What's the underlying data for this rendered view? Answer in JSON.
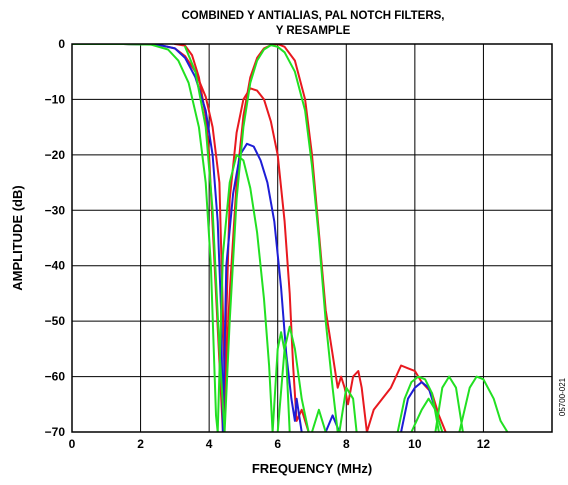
{
  "chart_data": {
    "type": "line",
    "title_line1": "COMBINED Y ANTIALIAS, PAL NOTCH FILTERS,",
    "title_line2": "Y RESAMPLE",
    "xlabel": "FREQUENCY (MHz)",
    "ylabel": "AMPLITUDE (dB)",
    "xlim": [
      0,
      14
    ],
    "ylim": [
      -70,
      0
    ],
    "xticks": [
      0,
      2,
      4,
      6,
      8,
      10,
      12
    ],
    "yticks": [
      0,
      -10,
      -20,
      -30,
      -40,
      -50,
      -60,
      -70
    ],
    "xtick_labels": [
      "0",
      "2",
      "4",
      "6",
      "8",
      "10",
      "12"
    ],
    "ytick_labels": [
      "0",
      "−10",
      "−20",
      "−30",
      "−40",
      "−50",
      "−60",
      "−70"
    ],
    "grid": true,
    "figure_id": "05700-021",
    "colors": {
      "red": "#e8191f",
      "blue": "#1e1ed6",
      "green": "#22e022"
    },
    "series": [
      {
        "color": "red",
        "x": [
          0,
          1.5,
          2.5,
          3.0,
          3.3,
          3.6,
          3.9,
          4.1,
          4.3,
          4.45,
          4.6,
          4.8,
          5.0,
          5.2,
          5.4,
          5.6,
          5.8,
          6.0,
          6.2,
          6.35,
          6.45,
          6.55,
          6.7,
          6.9
        ],
        "y": [
          0,
          0,
          -0.1,
          -0.8,
          -2.2,
          -5,
          -9.5,
          -15,
          -25,
          -60,
          -28,
          -16,
          -10,
          -8,
          -8.4,
          -10,
          -14,
          -20,
          -32,
          -45,
          -58,
          -68,
          -66,
          -70
        ]
      },
      {
        "color": "red",
        "x": [
          3.0,
          3.3,
          3.5,
          3.7,
          3.9,
          4.0,
          4.2,
          4.4,
          4.6,
          4.8,
          5.0,
          5.2,
          5.4,
          5.6,
          5.8,
          6.0,
          6.2,
          6.5,
          6.8,
          7.0,
          7.2,
          7.4,
          7.6,
          7.75,
          7.85,
          7.95,
          8.05,
          8.2,
          8.35,
          8.45,
          8.6,
          8.8,
          9.3,
          9.6,
          9.8,
          10.0,
          10.2,
          10.5,
          10.7,
          10.9
        ],
        "y": [
          0,
          -0.3,
          -2,
          -6,
          -13,
          -20,
          -45,
          -70,
          -45,
          -25,
          -13,
          -6,
          -2.5,
          -0.8,
          -0.2,
          0,
          -0.5,
          -3,
          -10,
          -20,
          -34,
          -48,
          -56,
          -62,
          -60,
          -62,
          -65,
          -60,
          -59,
          -62,
          -70,
          -66,
          -62,
          -58,
          -58.5,
          -59,
          -61,
          -63,
          -67,
          -70
        ]
      },
      {
        "color": "blue",
        "x": [
          0,
          1.5,
          2.5,
          3.0,
          3.3,
          3.6,
          3.9,
          4.1,
          4.25,
          4.35,
          4.4,
          4.5,
          4.7,
          4.9,
          5.1,
          5.3,
          5.5,
          5.7,
          5.9,
          6.1,
          6.25,
          6.4,
          6.5,
          6.55,
          6.7
        ],
        "y": [
          0,
          0,
          -0.1,
          -0.8,
          -2.5,
          -6,
          -12,
          -20,
          -32,
          -48,
          -70,
          -40,
          -27,
          -20,
          -18,
          -18.5,
          -21,
          -25,
          -32,
          -44,
          -56,
          -64,
          -68,
          -64,
          -70
        ]
      },
      {
        "color": "blue",
        "x": [
          7.4,
          7.6,
          7.8
        ],
        "y": [
          -70,
          -67,
          -70
        ]
      },
      {
        "color": "blue",
        "x": [
          9.6,
          9.8,
          10.0,
          10.2,
          10.4,
          10.6
        ],
        "y": [
          -70,
          -64,
          -62,
          -61,
          -62,
          -66
        ]
      },
      {
        "color": "green",
        "x": [
          0,
          1.5,
          2.3,
          2.8,
          3.1,
          3.4,
          3.7,
          3.9,
          4.05,
          4.15,
          4.2,
          4.25
        ],
        "y": [
          0,
          0,
          -0.1,
          -1,
          -3,
          -7,
          -15,
          -25,
          -40,
          -58,
          -67,
          -70
        ]
      },
      {
        "color": "green",
        "x": [
          4.25,
          4.4,
          4.6,
          4.8,
          5.0,
          5.2,
          5.4,
          5.6,
          5.75,
          5.85
        ],
        "y": [
          -70,
          -38,
          -25,
          -20,
          -21,
          -26,
          -34,
          -46,
          -58,
          -70
        ]
      },
      {
        "color": "green",
        "x": [
          5.85,
          6.0,
          6.1,
          6.25,
          6.35
        ],
        "y": [
          -70,
          -55,
          -52,
          -57,
          -70
        ]
      },
      {
        "color": "green",
        "x": [
          6.0,
          6.2,
          6.35,
          6.5,
          6.7,
          6.9
        ],
        "y": [
          -70,
          -55,
          -51,
          -55,
          -64,
          -70
        ]
      },
      {
        "color": "green",
        "x": [
          3.3,
          3.6,
          3.9,
          4.1,
          4.3,
          4.45,
          4.6,
          4.8,
          5.0,
          5.2,
          5.4,
          5.6,
          5.8,
          6.0,
          6.2,
          6.5,
          6.8,
          7.0,
          7.2,
          7.4,
          7.6,
          7.75,
          7.85
        ],
        "y": [
          -0.5,
          -5,
          -15,
          -30,
          -55,
          -70,
          -50,
          -28,
          -15,
          -7,
          -3,
          -1,
          -0.2,
          -0.5,
          -1.5,
          -5,
          -12,
          -22,
          -35,
          -50,
          -62,
          -70,
          -70
        ]
      },
      {
        "color": "green",
        "x": [
          7.0,
          7.2,
          7.4
        ],
        "y": [
          -70,
          -66,
          -70
        ]
      },
      {
        "color": "green",
        "x": [
          7.8,
          8.0,
          8.2,
          8.3
        ],
        "y": [
          -70,
          -62,
          -64,
          -70
        ]
      },
      {
        "color": "green",
        "x": [
          9.5,
          9.7,
          9.9,
          10.1,
          10.3,
          10.5,
          10.7
        ],
        "y": [
          -70,
          -64,
          -61,
          -60,
          -60.5,
          -63,
          -70
        ]
      },
      {
        "color": "green",
        "x": [
          9.9,
          10.2,
          10.4,
          10.6,
          10.8
        ],
        "y": [
          -70,
          -66,
          -64,
          -66,
          -70
        ]
      },
      {
        "color": "green",
        "x": [
          10.6,
          10.8,
          11.0,
          11.2,
          11.4
        ],
        "y": [
          -70,
          -62,
          -60,
          -62,
          -70
        ]
      },
      {
        "color": "green",
        "x": [
          11.3,
          11.6,
          11.8,
          12.0,
          12.3,
          12.5,
          12.7
        ],
        "y": [
          -70,
          -62,
          -60,
          -60.5,
          -64,
          -68,
          -70
        ]
      }
    ]
  }
}
